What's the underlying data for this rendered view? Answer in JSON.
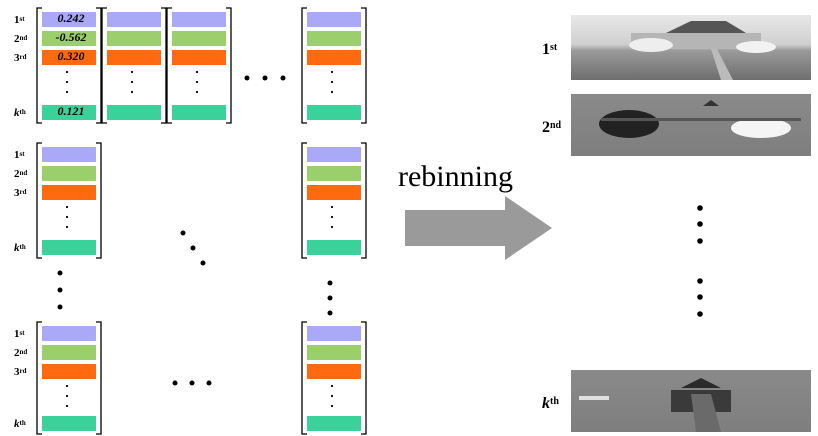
{
  "colors": {
    "purple": "#a9a9f7",
    "green": "#9bcf6b",
    "orange": "#ff6a10",
    "teal": "#3ad19a"
  },
  "row_labels": {
    "first": "1",
    "first_sup": "st",
    "second": "2",
    "second_sup": "nd",
    "third": "3",
    "third_sup": "rd",
    "kth": "k",
    "kth_sup": "th"
  },
  "first_vector_values": {
    "v1": "0.242",
    "v2": "-0.562",
    "v3": "0.320",
    "vk": "0.121"
  },
  "arrow_label": "rebinning",
  "right_labels": {
    "first": "1",
    "first_sup": "st",
    "second": "2",
    "second_sup": "nd",
    "kth": "k",
    "kth_sup": "th"
  }
}
